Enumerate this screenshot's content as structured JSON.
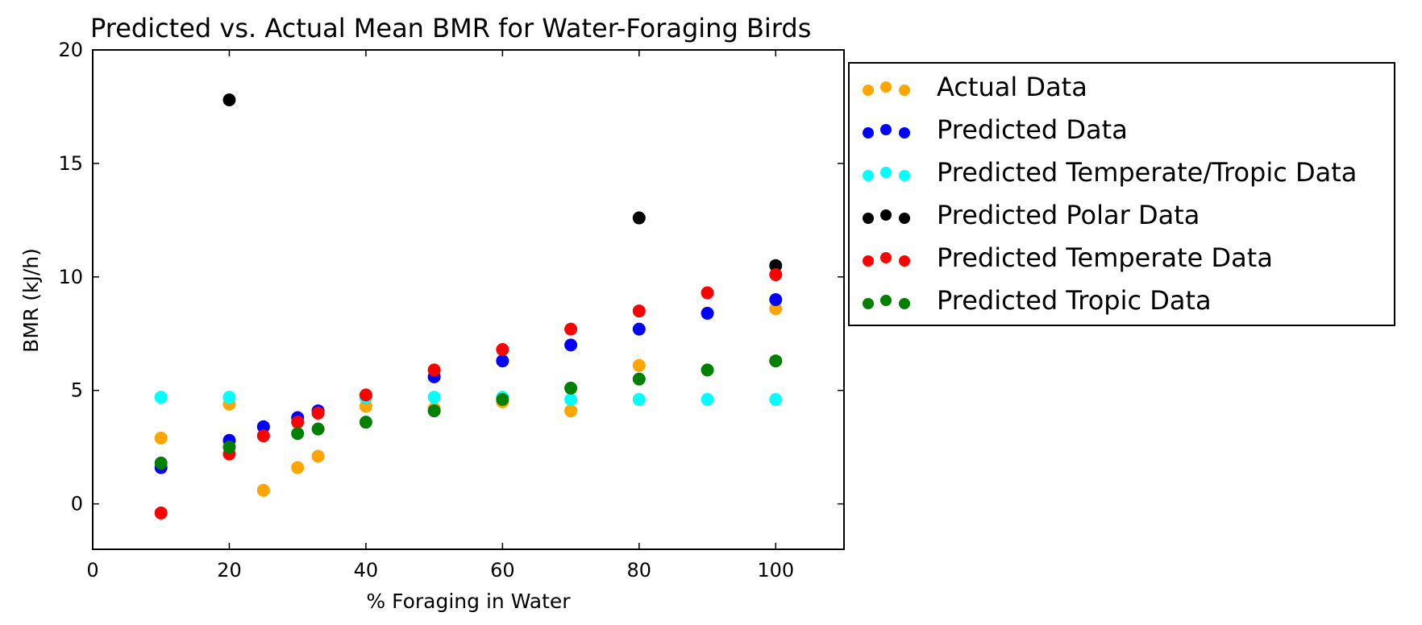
{
  "chart_data": {
    "type": "scatter",
    "title": "Predicted vs. Actual Mean BMR for Water-Foraging Birds",
    "xlabel": "% Foraging in Water",
    "ylabel": "BMR (kJ/h)",
    "xlim": [
      0,
      110
    ],
    "ylim": [
      -2,
      20
    ],
    "xticks": [
      0,
      20,
      40,
      60,
      80,
      100
    ],
    "yticks": [
      0,
      5,
      10,
      15,
      20
    ],
    "legend_position": "outside-right-top",
    "series": [
      {
        "name": "Actual Data",
        "color": "#ffa500",
        "points": [
          [
            10,
            2.9
          ],
          [
            20,
            4.4
          ],
          [
            25,
            0.6
          ],
          [
            30,
            1.6
          ],
          [
            33,
            2.1
          ],
          [
            40,
            4.3
          ],
          [
            50,
            4.2
          ],
          [
            60,
            4.5
          ],
          [
            70,
            4.1
          ],
          [
            80,
            6.1
          ],
          [
            100,
            8.6
          ]
        ]
      },
      {
        "name": "Predicted Data",
        "color": "#0000ff",
        "points": [
          [
            10,
            1.6
          ],
          [
            20,
            2.8
          ],
          [
            25,
            3.4
          ],
          [
            30,
            3.8
          ],
          [
            33,
            4.1
          ],
          [
            40,
            4.7
          ],
          [
            50,
            5.6
          ],
          [
            60,
            6.3
          ],
          [
            70,
            7.0
          ],
          [
            80,
            7.7
          ],
          [
            90,
            8.4
          ],
          [
            100,
            9.0
          ]
        ]
      },
      {
        "name": "Predicted Temperate/Tropic Data",
        "color": "#00ffff",
        "points": [
          [
            10,
            4.7
          ],
          [
            20,
            4.7
          ],
          [
            40,
            4.7
          ],
          [
            50,
            4.7
          ],
          [
            60,
            4.7
          ],
          [
            70,
            4.6
          ],
          [
            80,
            4.6
          ],
          [
            90,
            4.6
          ],
          [
            100,
            4.6
          ]
        ]
      },
      {
        "name": "Predicted Polar Data",
        "color": "#000000",
        "points": [
          [
            20,
            17.8
          ],
          [
            80,
            12.6
          ],
          [
            100,
            10.5
          ]
        ]
      },
      {
        "name": "Predicted Temperate Data",
        "color": "#ff0000",
        "points": [
          [
            10,
            -0.4
          ],
          [
            20,
            2.2
          ],
          [
            25,
            3.0
          ],
          [
            30,
            3.6
          ],
          [
            33,
            4.0
          ],
          [
            40,
            4.8
          ],
          [
            50,
            5.9
          ],
          [
            60,
            6.8
          ],
          [
            70,
            7.7
          ],
          [
            80,
            8.5
          ],
          [
            90,
            9.3
          ],
          [
            100,
            10.1
          ]
        ]
      },
      {
        "name": "Predicted Tropic Data",
        "color": "#008000",
        "points": [
          [
            10,
            1.8
          ],
          [
            20,
            2.5
          ],
          [
            30,
            3.1
          ],
          [
            33,
            3.3
          ],
          [
            40,
            3.6
          ],
          [
            50,
            4.1
          ],
          [
            60,
            4.6
          ],
          [
            70,
            5.1
          ],
          [
            80,
            5.5
          ],
          [
            90,
            5.9
          ],
          [
            100,
            6.3
          ]
        ]
      }
    ]
  }
}
